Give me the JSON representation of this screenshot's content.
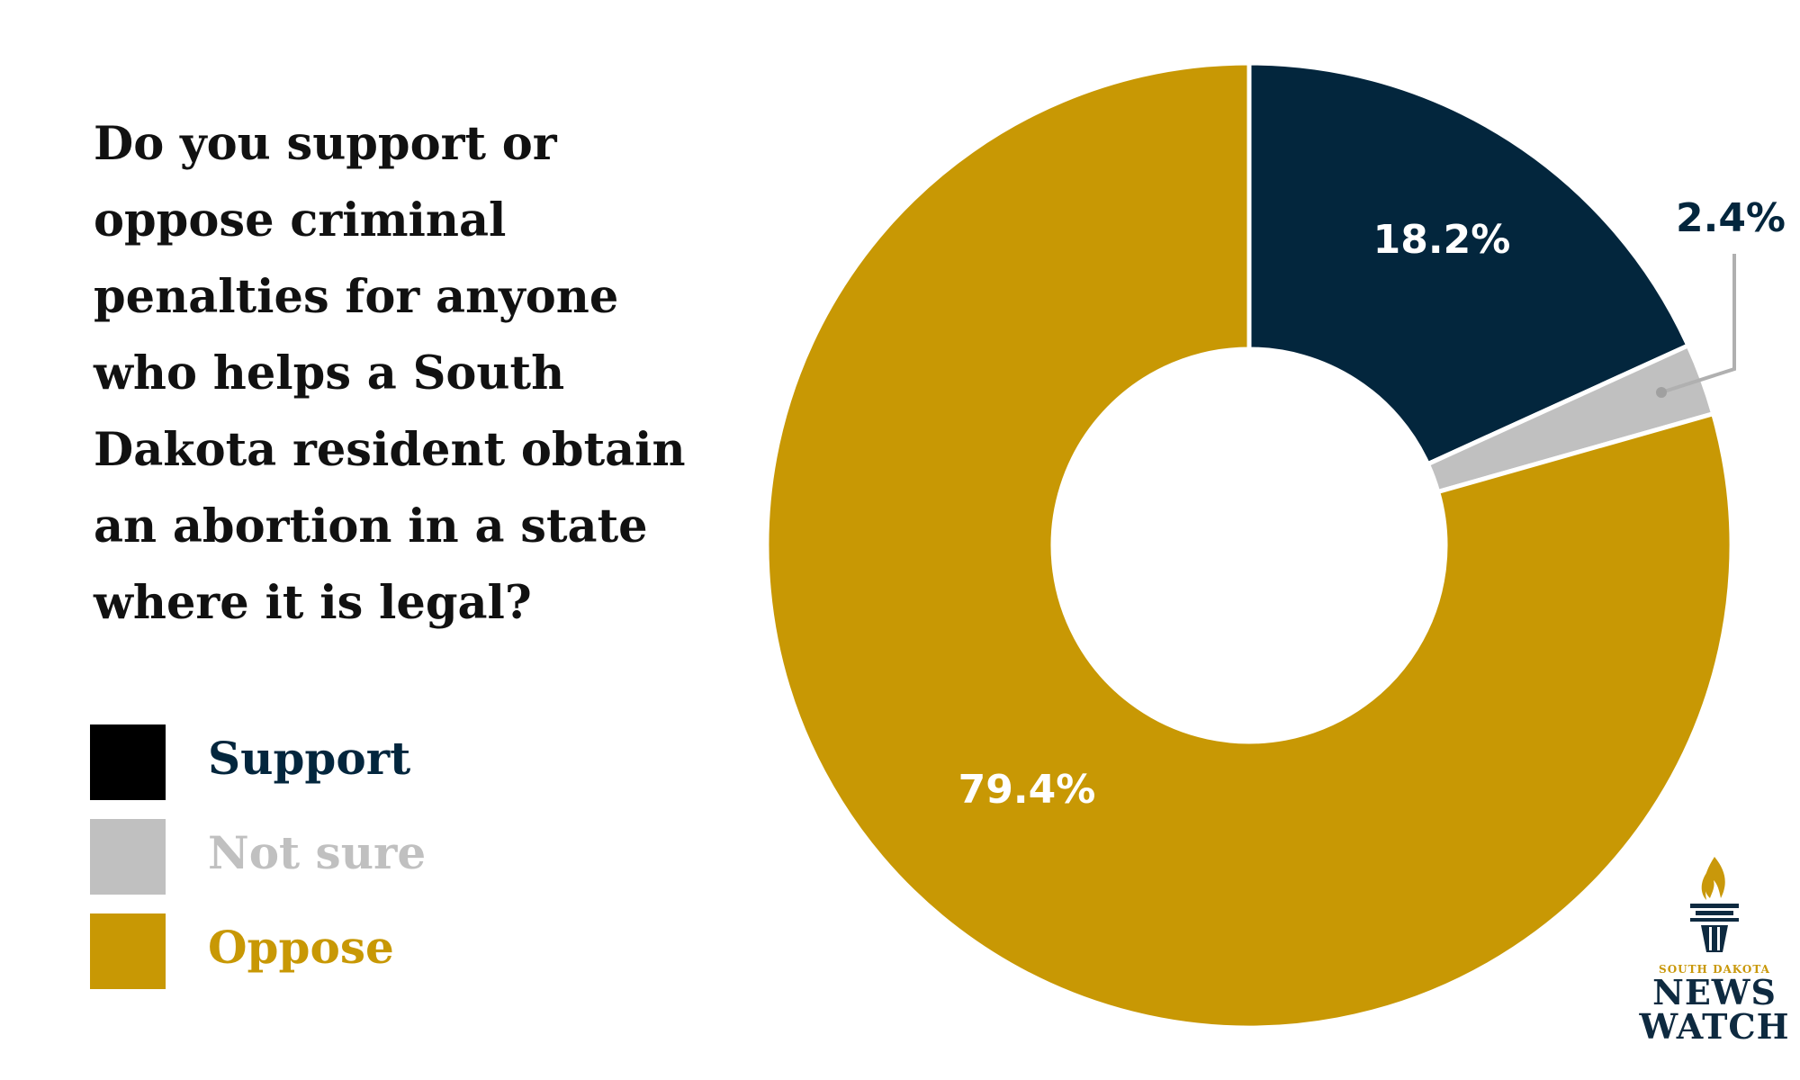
{
  "chart_data": {
    "type": "pie",
    "donut": true,
    "title": "Do you support or oppose criminal penalties for anyone who helps a South Dakota resident obtain an abortion in a state where it is legal?",
    "title_lines": [
      "Do you support or",
      "oppose criminal",
      "penalties for anyone",
      "who helps a South",
      "Dakota resident obtain",
      "an abortion in a state",
      "where it is legal?"
    ],
    "legend_placement": "left",
    "categories": [
      "Support",
      "Not sure",
      "Oppose"
    ],
    "values": [
      18.2,
      2.4,
      79.4
    ],
    "data_labels": [
      "18.2%",
      "2.4%",
      "79.4%"
    ],
    "colors": [
      "#03263d",
      "#c0c0c0",
      "#c89804"
    ],
    "legend_swatch_colors": [
      "#000000",
      "#c0c0c0",
      "#c89804"
    ],
    "label_colors": [
      "#ffffff",
      "#03263d",
      "#ffffff"
    ]
  },
  "logo": {
    "top": "SOUTH DAKOTA",
    "line1": "NEWS",
    "line2": "WATCH"
  }
}
